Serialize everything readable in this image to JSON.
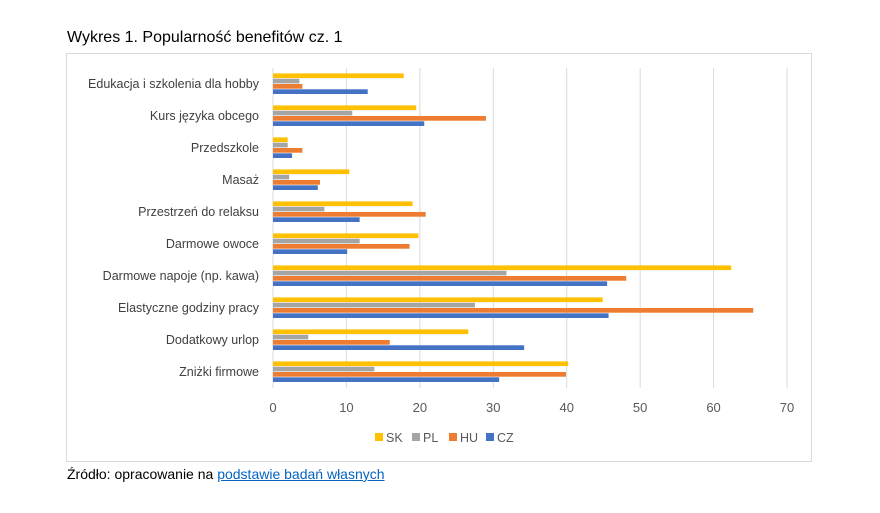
{
  "title": "Wykres 1. Popularność benefitów cz. 1",
  "source": {
    "prefix": "Źródło: opracowanie na ",
    "link": "podstawie badań własnych"
  },
  "chart_data": {
    "type": "bar",
    "orientation": "horizontal",
    "title": "",
    "xlim": [
      0,
      70
    ],
    "xticks": [
      0,
      10,
      20,
      30,
      40,
      50,
      60,
      70
    ],
    "grid": true,
    "legend": "bottom",
    "categories": [
      "Edukacja i szkolenia dla hobby",
      "Kurs języka obcego",
      "Przedszkole",
      "Masaż",
      "Przestrzeń do relaksu",
      "Darmowe owoce",
      "Darmowe napoje (np. kawa)",
      "Elastyczne godziny pracy",
      "Dodatkowy urlop",
      "Zniżki firmowe"
    ],
    "series": [
      {
        "name": "SK",
        "color": "#ffc000",
        "values": [
          17.8,
          19.5,
          2.0,
          10.4,
          19.0,
          19.8,
          62.4,
          44.9,
          26.6,
          40.2
        ]
      },
      {
        "name": "PL",
        "color": "#a5a5a5",
        "values": [
          3.6,
          10.8,
          2.0,
          2.2,
          7.0,
          11.8,
          31.8,
          27.5,
          4.8,
          13.8
        ]
      },
      {
        "name": "HU",
        "color": "#ed7d31",
        "values": [
          4.0,
          29.0,
          4.0,
          6.4,
          20.8,
          18.6,
          48.1,
          65.4,
          15.9,
          39.9
        ]
      },
      {
        "name": "CZ",
        "color": "#4472c4",
        "values": [
          12.9,
          20.6,
          2.6,
          6.1,
          11.8,
          10.1,
          45.5,
          45.7,
          34.2,
          30.8
        ]
      }
    ]
  }
}
